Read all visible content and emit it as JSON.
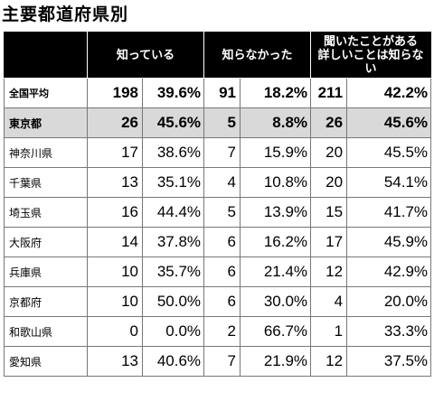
{
  "title": "主要都道府県別",
  "columns": [
    "知っている",
    "知らなかった",
    "聞いたことがある 詳しいことは知らない"
  ],
  "rows": [
    {
      "region": "全国平均",
      "known_n": "198",
      "known_pct": "39.6%",
      "unknown_n": "91",
      "unknown_pct": "18.2%",
      "heard_n": "211",
      "heard_pct": "42.2%"
    },
    {
      "region": "東京都",
      "known_n": "26",
      "known_pct": "45.6%",
      "unknown_n": "5",
      "unknown_pct": "8.8%",
      "heard_n": "26",
      "heard_pct": "45.6%"
    },
    {
      "region": "神奈川県",
      "known_n": "17",
      "known_pct": "38.6%",
      "unknown_n": "7",
      "unknown_pct": "15.9%",
      "heard_n": "20",
      "heard_pct": "45.5%"
    },
    {
      "region": "千葉県",
      "known_n": "13",
      "known_pct": "35.1%",
      "unknown_n": "4",
      "unknown_pct": "10.8%",
      "heard_n": "20",
      "heard_pct": "54.1%"
    },
    {
      "region": "埼玉県",
      "known_n": "16",
      "known_pct": "44.4%",
      "unknown_n": "5",
      "unknown_pct": "13.9%",
      "heard_n": "15",
      "heard_pct": "41.7%"
    },
    {
      "region": "大阪府",
      "known_n": "14",
      "known_pct": "37.8%",
      "unknown_n": "6",
      "unknown_pct": "16.2%",
      "heard_n": "17",
      "heard_pct": "45.9%"
    },
    {
      "region": "兵庫県",
      "known_n": "10",
      "known_pct": "35.7%",
      "unknown_n": "6",
      "unknown_pct": "21.4%",
      "heard_n": "12",
      "heard_pct": "42.9%"
    },
    {
      "region": "京都府",
      "known_n": "10",
      "known_pct": "50.0%",
      "unknown_n": "6",
      "unknown_pct": "30.0%",
      "heard_n": "4",
      "heard_pct": "20.0%"
    },
    {
      "region": "和歌山県",
      "known_n": "0",
      "known_pct": "0.0%",
      "unknown_n": "2",
      "unknown_pct": "66.7%",
      "heard_n": "1",
      "heard_pct": "33.3%"
    },
    {
      "region": "愛知県",
      "known_n": "13",
      "known_pct": "40.6%",
      "unknown_n": "7",
      "unknown_pct": "21.9%",
      "heard_n": "12",
      "heard_pct": "37.5%"
    }
  ],
  "colors": {
    "header_bg": "#000000",
    "header_text": "#ffffff",
    "highlight_row": "#d9d9d9",
    "border": "#777777"
  }
}
